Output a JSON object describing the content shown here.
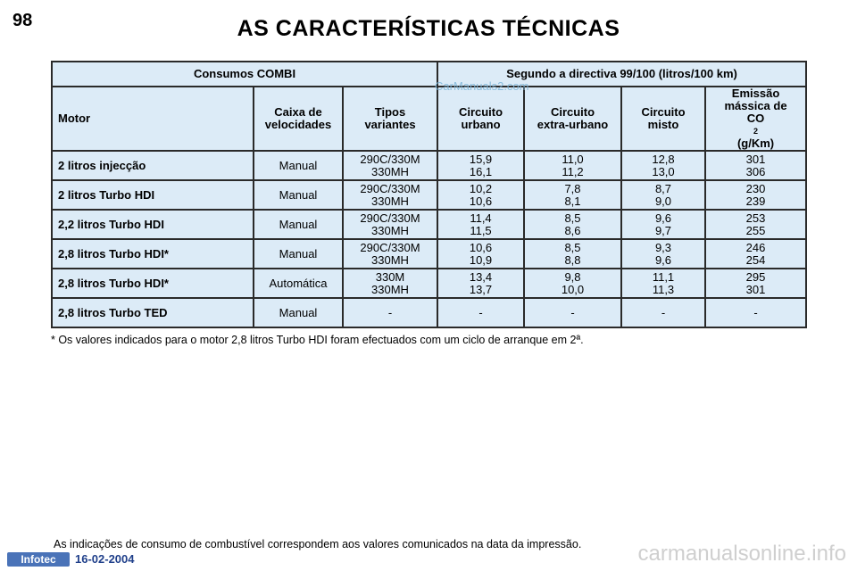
{
  "page": {
    "number": "98",
    "title": "AS CARACTERÍSTICAS TÉCNICAS"
  },
  "table": {
    "group_left": "Consumos COMBI",
    "group_right": "Segundo a directiva 99/100 (litros/100 km)",
    "columns": {
      "motor": "Motor",
      "gearbox": [
        "Caixa de",
        "velocidades"
      ],
      "variants": [
        "Tipos",
        "variantes"
      ],
      "urban": [
        "Circuito",
        "urbano"
      ],
      "extra_urban": [
        "Circuito",
        "extra-urbano"
      ],
      "mixed": [
        "Circuito",
        "misto"
      ],
      "co2": [
        "Emissão",
        "mássica de",
        "CO",
        "2",
        " (g/Km)"
      ]
    },
    "rows": [
      {
        "motor": "2 litros injecção",
        "gearbox": "Manual",
        "variants": [
          "290C/330M",
          "330MH"
        ],
        "urban": [
          "15,9",
          "16,1"
        ],
        "extra_urban": [
          "11,0",
          "11,2"
        ],
        "mixed": [
          "12,8",
          "13,0"
        ],
        "co2": [
          "301",
          "306"
        ]
      },
      {
        "motor": "2 litros Turbo HDI",
        "gearbox": "Manual",
        "variants": [
          "290C/330M",
          "330MH"
        ],
        "urban": [
          "10,2",
          "10,6"
        ],
        "extra_urban": [
          "7,8",
          "8,1"
        ],
        "mixed": [
          "8,7",
          "9,0"
        ],
        "co2": [
          "230",
          "239"
        ]
      },
      {
        "motor": "2,2 litros Turbo HDI",
        "gearbox": "Manual",
        "variants": [
          "290C/330M",
          "330MH"
        ],
        "urban": [
          "11,4",
          "11,5"
        ],
        "extra_urban": [
          "8,5",
          "8,6"
        ],
        "mixed": [
          "9,6",
          "9,7"
        ],
        "co2": [
          "253",
          "255"
        ]
      },
      {
        "motor": "2,8 litros Turbo HDI*",
        "gearbox": "Manual",
        "variants": [
          "290C/330M",
          "330MH"
        ],
        "urban": [
          "10,6",
          "10,9"
        ],
        "extra_urban": [
          "8,5",
          "8,8"
        ],
        "mixed": [
          "9,3",
          "9,6"
        ],
        "co2": [
          "246",
          "254"
        ]
      },
      {
        "motor": "2,8 litros Turbo HDI*",
        "gearbox": "Automática",
        "variants": [
          "330M",
          "330MH"
        ],
        "urban": [
          "13,4",
          "13,7"
        ],
        "extra_urban": [
          "9,8",
          "10,0"
        ],
        "mixed": [
          "11,1",
          "11,3"
        ],
        "co2": [
          "295",
          "301"
        ]
      },
      {
        "motor": "2,8 litros Turbo TED",
        "gearbox": "Manual",
        "variants": [
          "-"
        ],
        "urban": [
          "-"
        ],
        "extra_urban": [
          "-"
        ],
        "mixed": [
          "-"
        ],
        "co2": [
          "-"
        ]
      }
    ]
  },
  "footnote": "* Os valores indicados para o motor 2,8 litros Turbo HDI foram efectuados com um ciclo de arranque em 2ª.",
  "bottom_note": "As indicações de consumo de combustível correspondem aos valores comunicados na data da impressão.",
  "footer": {
    "logo": "Infotec",
    "date": "16-02-2004"
  },
  "watermarks": {
    "top": "CarManuals2.com",
    "bottom": "carmanualsonline.info"
  },
  "colors": {
    "table_bg": "#dcebf7",
    "border": "#2a2a2a",
    "footer_blue": "#4a73b8"
  }
}
